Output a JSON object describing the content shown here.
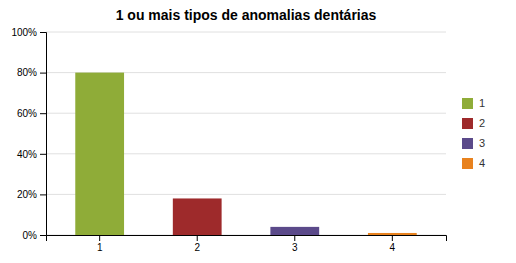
{
  "chart_data": {
    "type": "bar",
    "title": "1 ou mais tipos de anomalias dentárias",
    "categories": [
      "1",
      "2",
      "3",
      "4"
    ],
    "values": [
      0.8,
      0.18,
      0.04,
      0.01
    ],
    "colors": [
      "#8fac38",
      "#9e2a2b",
      "#5b4a8a",
      "#e8821e"
    ],
    "ylim": [
      0,
      1.0
    ],
    "yticks": [
      {
        "value": 0.0,
        "label": "0%"
      },
      {
        "value": 0.2,
        "label": "20%"
      },
      {
        "value": 0.4,
        "label": "40%"
      },
      {
        "value": 0.6,
        "label": "60%"
      },
      {
        "value": 0.8,
        "label": "80%"
      },
      {
        "value": 1.0,
        "label": "100%"
      }
    ],
    "grid": true,
    "legend": "right"
  }
}
